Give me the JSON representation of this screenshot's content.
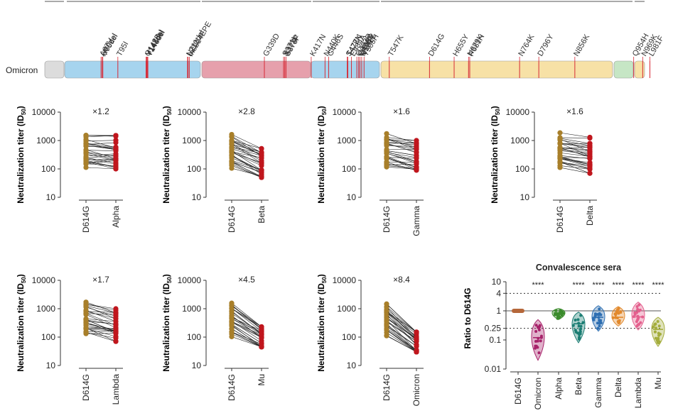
{
  "genome": {
    "variant_label": "Omicron",
    "mutations": [
      {
        "label": "A67V",
        "x": 67
      },
      {
        "label": "H69del",
        "x": 69
      },
      {
        "label": "V70del",
        "x": 70
      },
      {
        "label": "T95I",
        "x": 95
      },
      {
        "label": "G142D",
        "x": 142
      },
      {
        "label": "Y143del",
        "x": 143
      },
      {
        "label": "Y144del",
        "x": 144
      },
      {
        "label": "Y145del",
        "x": 145
      },
      {
        "label": "N211del",
        "x": 211
      },
      {
        "label": "L212I",
        "x": 212
      },
      {
        "label": "ins214EPE",
        "x": 214
      },
      {
        "label": "G339D",
        "x": 339
      },
      {
        "label": "S371L",
        "x": 371
      },
      {
        "label": "S373P",
        "x": 373
      },
      {
        "label": "S375F",
        "x": 375
      },
      {
        "label": "K417N",
        "x": 417
      },
      {
        "label": "N440K",
        "x": 440
      },
      {
        "label": "G446S",
        "x": 446
      },
      {
        "label": "S477N",
        "x": 477
      },
      {
        "label": "T478K",
        "x": 478
      },
      {
        "label": "E484A",
        "x": 484
      },
      {
        "label": "Q493R",
        "x": 493
      },
      {
        "label": "G496S",
        "x": 496
      },
      {
        "label": "Q498R",
        "x": 498
      },
      {
        "label": "N501Y",
        "x": 501
      },
      {
        "label": "Y505H",
        "x": 505
      },
      {
        "label": "T547K",
        "x": 547
      },
      {
        "label": "D614G",
        "x": 614
      },
      {
        "label": "H655Y",
        "x": 655
      },
      {
        "label": "N679K",
        "x": 679
      },
      {
        "label": "P681H",
        "x": 681
      },
      {
        "label": "N764K",
        "x": 764
      },
      {
        "label": "D796Y",
        "x": 796
      },
      {
        "label": "N856K",
        "x": 856
      },
      {
        "label": "Q954H",
        "x": 954
      },
      {
        "label": "N969K",
        "x": 969
      },
      {
        "label": "L981F",
        "x": 981
      }
    ],
    "colors": {
      "ntd": "#a6d4ee",
      "rbd": "#e6a0ac",
      "s1": "#a6d4ee",
      "s2": "#f7e1a6",
      "hr2": "#c6e6c5",
      "tail": "#f7e1a6",
      "head": "#dcdcdc",
      "mutation": "#d62a36"
    }
  },
  "panels": {
    "ylabel_main": "Neutralization titer (ID",
    "ylabel_sub": "50",
    "ylabel_close": ")",
    "ticks": [
      "10",
      "100",
      "1000",
      "10000"
    ],
    "ref_label": "D614G",
    "ref_color": "#a87f2a",
    "variant_color": "#c0161d"
  },
  "chart_data": [
    {
      "type": "scatter",
      "name": "paired",
      "categories": [
        "D614G",
        "Alpha"
      ],
      "fold": "×1.2",
      "ylim": [
        10,
        10000
      ],
      "log": true,
      "ref_range": [
        100,
        1900
      ],
      "variant_range": [
        100,
        1500
      ],
      "fold_value": 1.2
    },
    {
      "type": "scatter",
      "name": "paired",
      "categories": [
        "D614G",
        "Beta"
      ],
      "fold": "×2.8",
      "ylim": [
        10,
        10000
      ],
      "log": true,
      "ref_range": [
        100,
        1900
      ],
      "variant_range": [
        50,
        520
      ],
      "fold_value": 2.8
    },
    {
      "type": "scatter",
      "name": "paired",
      "categories": [
        "D614G",
        "Gamma"
      ],
      "fold": "×1.6",
      "ylim": [
        10,
        10000
      ],
      "log": true,
      "ref_range": [
        100,
        1900
      ],
      "variant_range": [
        90,
        1000
      ],
      "fold_value": 1.6
    },
    {
      "type": "scatter",
      "name": "paired",
      "categories": [
        "D614G",
        "Delta"
      ],
      "fold": "×1.6",
      "ylim": [
        10,
        10000
      ],
      "log": true,
      "ref_range": [
        100,
        1900
      ],
      "variant_range": [
        70,
        1300
      ],
      "fold_value": 1.6
    },
    {
      "type": "scatter",
      "name": "paired",
      "categories": [
        "D614G",
        "Lambda"
      ],
      "fold": "×1.7",
      "ylim": [
        10,
        10000
      ],
      "log": true,
      "ref_range": [
        100,
        1900
      ],
      "variant_range": [
        70,
        1000
      ],
      "fold_value": 1.7
    },
    {
      "type": "scatter",
      "name": "paired",
      "categories": [
        "D614G",
        "Mu"
      ],
      "fold": "×4.5",
      "ylim": [
        10,
        10000
      ],
      "log": true,
      "ref_range": [
        100,
        1900
      ],
      "variant_range": [
        45,
        230
      ],
      "fold_value": 4.5
    },
    {
      "type": "scatter",
      "name": "paired",
      "categories": [
        "D614G",
        "Omicron"
      ],
      "fold": "×8.4",
      "ylim": [
        10,
        10000
      ],
      "log": true,
      "ref_range": [
        100,
        1900
      ],
      "variant_range": [
        30,
        150
      ],
      "fold_value": 8.4
    },
    {
      "type": "violin",
      "title": "Convalescence sera",
      "ylabel": "Ratio to D614G",
      "log": true,
      "ylim": [
        0.01,
        10
      ],
      "ticks": [
        "0.01",
        "0.1",
        "0.25",
        "1",
        "4",
        "10"
      ],
      "ref_lines": [
        0.25,
        4
      ],
      "categories": [
        "D614G",
        "Omicron",
        "Alpha",
        "Beta",
        "Gamma",
        "Delta",
        "Lambda",
        "Mu"
      ],
      "significance": [
        "",
        "****",
        "",
        "****",
        "****",
        "****",
        "****",
        "****"
      ],
      "colors": [
        "#b5673a",
        "#a7226a",
        "#3b8b2c",
        "#1b7d73",
        "#2e6fb2",
        "#e2892c",
        "#e45f8d",
        "#a4ad3c"
      ],
      "ranges": [
        [
          1,
          1
        ],
        [
          0.02,
          0.5
        ],
        [
          0.5,
          1.2
        ],
        [
          0.08,
          0.9
        ],
        [
          0.2,
          1.5
        ],
        [
          0.3,
          1.4
        ],
        [
          0.22,
          2
        ],
        [
          0.06,
          0.6
        ]
      ],
      "medians": [
        1,
        0.12,
        0.85,
        0.36,
        0.6,
        0.6,
        0.62,
        0.23
      ]
    }
  ]
}
